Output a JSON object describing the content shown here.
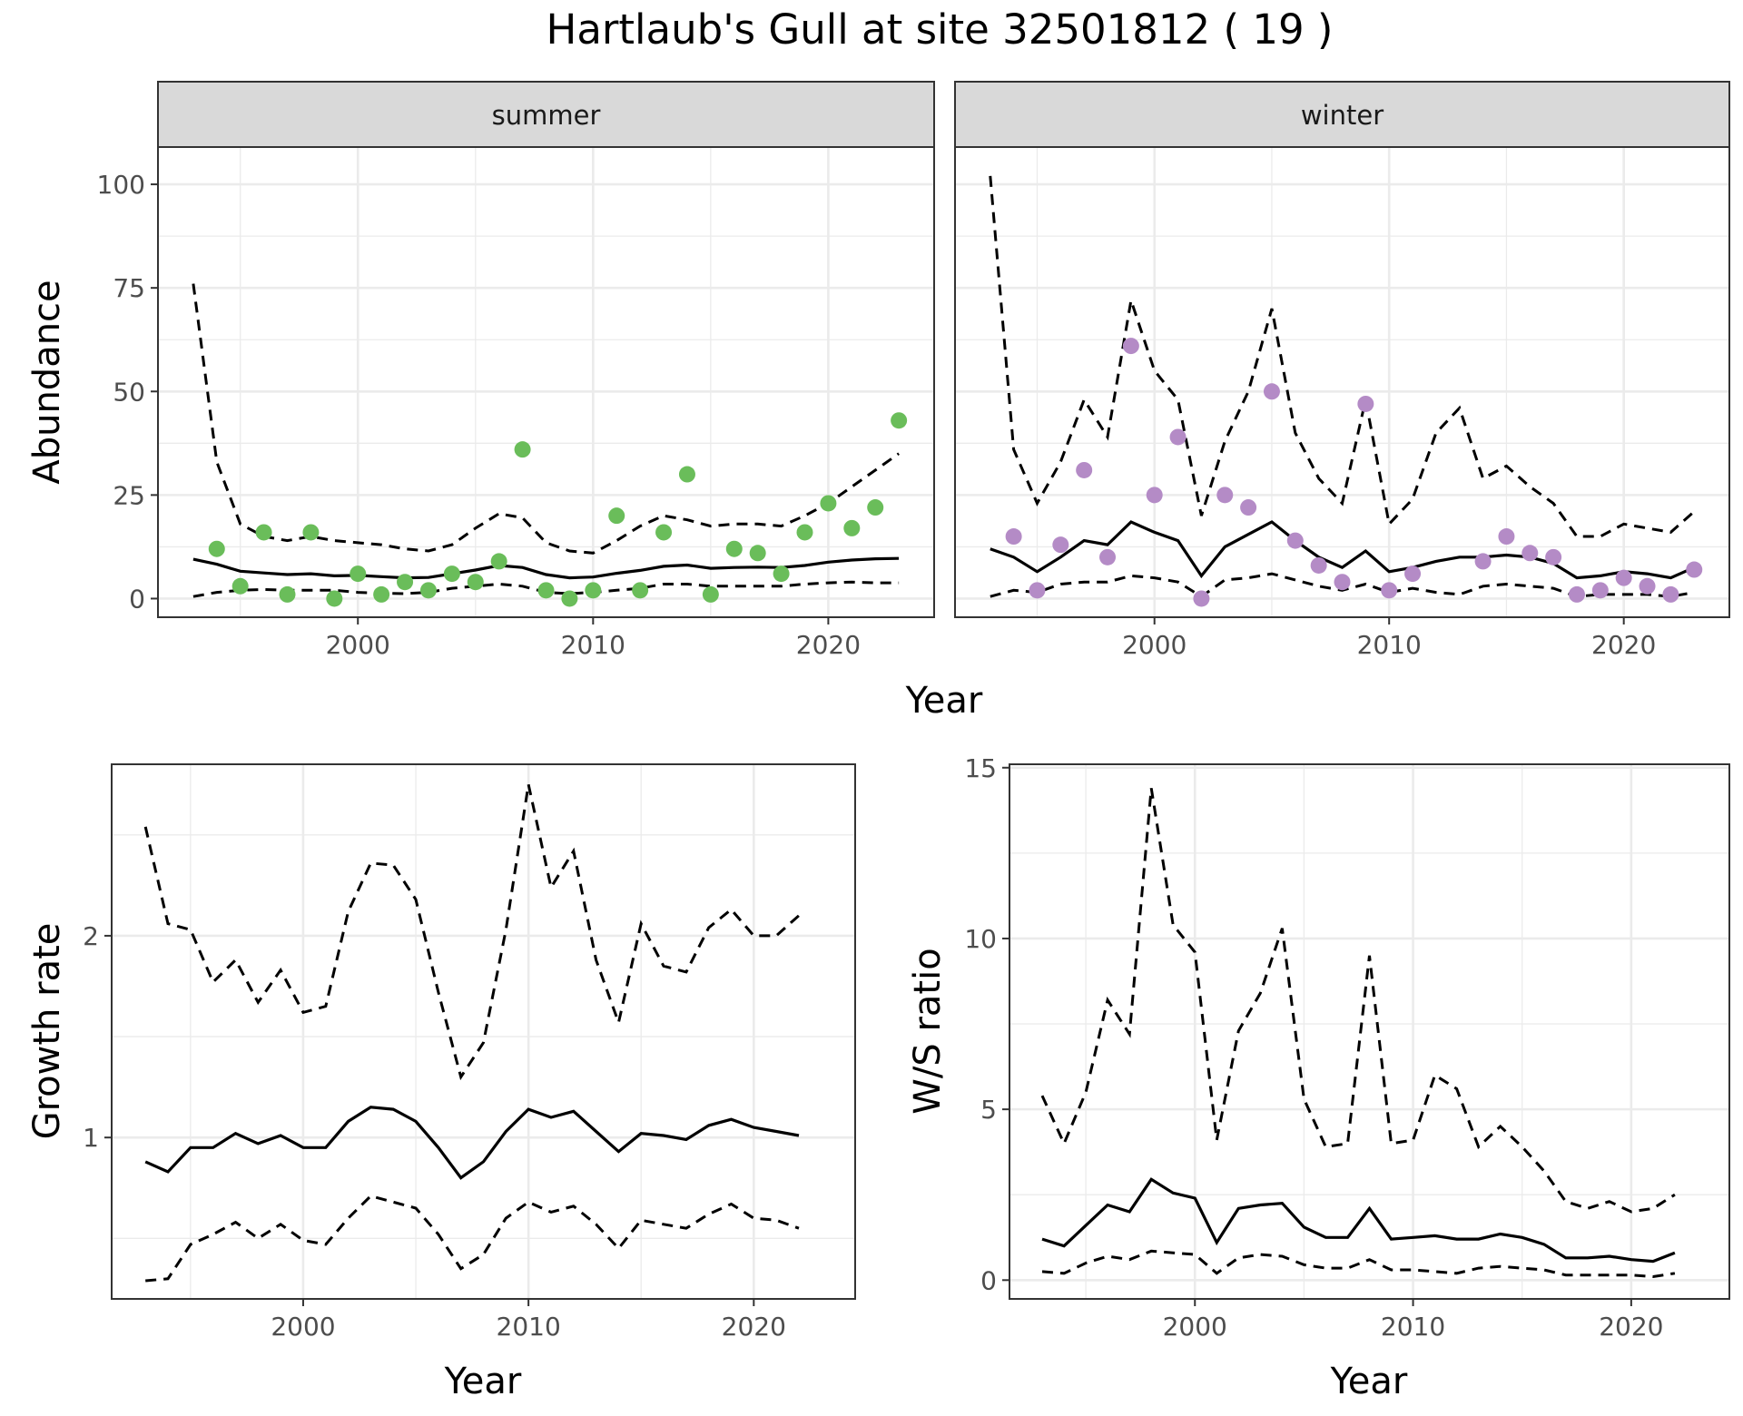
{
  "title": "Hartlaub's Gull at site 32501812 ( 19 )",
  "colors": {
    "summer_points": "#6abd5a",
    "winter_points": "#b48bc6",
    "line": "#000000",
    "grid": "#ebebeb",
    "strip_bg": "#d9d9d9"
  },
  "chart_data": [
    {
      "type": "scatter",
      "facet": "summer",
      "strip_label": "summer",
      "xlabel": "Year",
      "ylabel": "Abundance",
      "xlim": [
        1991.5,
        2024.5
      ],
      "ylim": [
        -4.5,
        109
      ],
      "xticks": [
        2000,
        2010,
        2020
      ],
      "yticks": [
        0,
        25,
        50,
        75,
        100
      ],
      "grid": true,
      "points": {
        "x": [
          1994,
          1995,
          1996,
          1997,
          1998,
          1999,
          2000,
          2001,
          2002,
          2003,
          2004,
          2005,
          2006,
          2007,
          2008,
          2009,
          2010,
          2011,
          2012,
          2013,
          2014,
          2015,
          2016,
          2017,
          2018,
          2019,
          2020,
          2021,
          2022,
          2023
        ],
        "y": [
          12,
          3,
          16,
          1,
          16,
          0,
          6,
          1,
          4,
          2,
          6,
          4,
          9,
          36,
          2,
          0,
          2,
          20,
          2,
          16,
          30,
          1,
          12,
          11,
          6,
          16,
          23,
          17,
          22,
          43
        ]
      },
      "fit": {
        "x": [
          1993,
          1994,
          1995,
          1996,
          1997,
          1998,
          1999,
          2000,
          2001,
          2002,
          2003,
          2004,
          2005,
          2006,
          2007,
          2008,
          2009,
          2010,
          2011,
          2012,
          2013,
          2014,
          2015,
          2016,
          2017,
          2018,
          2019,
          2020,
          2021,
          2022,
          2023
        ],
        "y": [
          9.5,
          8.3,
          6.6,
          6.2,
          5.8,
          6.0,
          5.5,
          5.6,
          5.3,
          5.0,
          5.1,
          6.0,
          6.9,
          8.0,
          7.5,
          5.8,
          5.0,
          5.2,
          6.1,
          6.8,
          7.8,
          8.1,
          7.3,
          7.5,
          7.6,
          7.5,
          8.0,
          8.8,
          9.3,
          9.6,
          9.7
        ]
      },
      "upper": {
        "x": [
          1993,
          1994,
          1995,
          1996,
          1997,
          1998,
          1999,
          2000,
          2001,
          2002,
          2003,
          2004,
          2005,
          2006,
          2007,
          2008,
          2009,
          2010,
          2011,
          2012,
          2013,
          2014,
          2015,
          2016,
          2017,
          2018,
          2019,
          2020,
          2021,
          2022,
          2023
        ],
        "y": [
          76,
          33,
          18,
          15,
          14,
          15,
          14,
          13.5,
          13,
          12,
          11.5,
          13,
          17,
          20.5,
          19.5,
          13.5,
          11.5,
          11,
          14,
          17.5,
          20,
          19,
          17.5,
          18,
          18,
          17.5,
          20,
          23,
          27,
          31,
          35
        ]
      },
      "lower": {
        "x": [
          1993,
          1994,
          1995,
          1996,
          1997,
          1998,
          1999,
          2000,
          2001,
          2002,
          2003,
          2004,
          2005,
          2006,
          2007,
          2008,
          2009,
          2010,
          2011,
          2012,
          2013,
          2014,
          2015,
          2016,
          2017,
          2018,
          2019,
          2020,
          2021,
          2022,
          2023
        ],
        "y": [
          0.5,
          1.5,
          2,
          2.2,
          2,
          2,
          2,
          1.5,
          1.3,
          1.2,
          1.5,
          2.5,
          3,
          3.5,
          3,
          1.5,
          1.2,
          1.5,
          2,
          2.5,
          3.5,
          3.5,
          3,
          3,
          3,
          3,
          3.5,
          3.8,
          4,
          3.8,
          3.8
        ]
      }
    },
    {
      "type": "scatter",
      "facet": "winter",
      "strip_label": "winter",
      "xlabel": "Year",
      "ylabel": "Abundance",
      "xlim": [
        1991.5,
        2024.5
      ],
      "ylim": [
        -4.5,
        109
      ],
      "xticks": [
        2000,
        2010,
        2020
      ],
      "yticks": [
        0,
        25,
        50,
        75,
        100
      ],
      "grid": true,
      "points": {
        "x": [
          1994,
          1995,
          1996,
          1997,
          1998,
          1999,
          2000,
          2001,
          2002,
          2003,
          2004,
          2005,
          2006,
          2007,
          2008,
          2009,
          2010,
          2011,
          2014,
          2015,
          2016,
          2017,
          2018,
          2019,
          2020,
          2021,
          2022,
          2023
        ],
        "y": [
          15,
          2,
          13,
          31,
          10,
          61,
          25,
          39,
          0,
          25,
          22,
          50,
          14,
          8,
          4,
          47,
          2,
          6,
          9,
          15,
          11,
          10,
          1,
          2,
          5,
          3,
          1,
          7
        ]
      },
      "fit": {
        "x": [
          1993,
          1994,
          1995,
          1996,
          1997,
          1998,
          1999,
          2000,
          2001,
          2002,
          2003,
          2004,
          2005,
          2006,
          2007,
          2008,
          2009,
          2010,
          2011,
          2012,
          2013,
          2014,
          2015,
          2016,
          2017,
          2018,
          2019,
          2020,
          2021,
          2022,
          2023
        ],
        "y": [
          12,
          10,
          6.5,
          10,
          14,
          13,
          18.5,
          16,
          14,
          5.5,
          12.5,
          15.5,
          18.5,
          14,
          10,
          7.5,
          11.5,
          6.5,
          7.5,
          9,
          10,
          10,
          10.5,
          10,
          8.5,
          5,
          5.5,
          6.5,
          6,
          5,
          7.5
        ]
      },
      "upper": {
        "x": [
          1993,
          1994,
          1995,
          1996,
          1997,
          1998,
          1999,
          2000,
          2001,
          2002,
          2003,
          2004,
          2005,
          2006,
          2007,
          2008,
          2009,
          2010,
          2011,
          2012,
          2013,
          2014,
          2015,
          2016,
          2017,
          2018,
          2019,
          2020,
          2021,
          2022,
          2023
        ],
        "y": [
          102,
          36,
          23,
          33,
          48,
          39,
          72,
          55,
          48,
          20,
          38,
          50,
          70,
          40,
          29,
          23,
          48,
          18,
          24,
          40,
          46,
          29,
          32,
          27,
          23,
          15,
          15,
          18,
          17,
          16,
          21
        ]
      },
      "lower": {
        "x": [
          1993,
          1994,
          1995,
          1996,
          1997,
          1998,
          1999,
          2000,
          2001,
          2002,
          2003,
          2004,
          2005,
          2006,
          2007,
          2008,
          2009,
          2010,
          2011,
          2012,
          2013,
          2014,
          2015,
          2016,
          2017,
          2018,
          2019,
          2020,
          2021,
          2022,
          2023
        ],
        "y": [
          0.5,
          2,
          1.5,
          3.5,
          4,
          4,
          5.5,
          5,
          4,
          0.5,
          4.5,
          5,
          6,
          4.5,
          3,
          2,
          3.5,
          1.5,
          2.5,
          1.5,
          1,
          3,
          3.5,
          3,
          2.5,
          0.5,
          1,
          1,
          1,
          0.5,
          1.5
        ]
      }
    },
    {
      "type": "line",
      "xlabel": "Year",
      "ylabel": "Growth rate",
      "xlim": [
        1991.5,
        2024.5
      ],
      "ylim": [
        0.2,
        2.85
      ],
      "xticks": [
        2000,
        2010,
        2020
      ],
      "yticks": [
        1,
        2
      ],
      "grid": true,
      "fit": {
        "x": [
          1993,
          1994,
          1995,
          1996,
          1997,
          1998,
          1999,
          2000,
          2001,
          2002,
          2003,
          2004,
          2005,
          2006,
          2007,
          2008,
          2009,
          2010,
          2011,
          2012,
          2013,
          2014,
          2015,
          2016,
          2017,
          2018,
          2019,
          2020,
          2021,
          2022
        ],
        "y": [
          0.88,
          0.83,
          0.95,
          0.95,
          1.02,
          0.97,
          1.01,
          0.95,
          0.95,
          1.08,
          1.15,
          1.14,
          1.08,
          0.95,
          0.8,
          0.88,
          1.03,
          1.14,
          1.1,
          1.13,
          1.03,
          0.93,
          1.02,
          1.01,
          0.99,
          1.06,
          1.09,
          1.05,
          1.03,
          1.01
        ]
      },
      "upper": {
        "x": [
          1993,
          1994,
          1995,
          1996,
          1997,
          1998,
          1999,
          2000,
          2001,
          2002,
          2003,
          2004,
          2005,
          2006,
          2007,
          2008,
          2009,
          2010,
          2011,
          2012,
          2013,
          2014,
          2015,
          2016,
          2017,
          2018,
          2019,
          2020,
          2021,
          2022
        ],
        "y": [
          2.54,
          2.06,
          2.03,
          1.77,
          1.88,
          1.67,
          1.83,
          1.62,
          1.65,
          2.12,
          2.36,
          2.35,
          2.18,
          1.72,
          1.3,
          1.47,
          2.03,
          2.75,
          2.24,
          2.42,
          1.88,
          1.57,
          2.06,
          1.85,
          1.82,
          2.04,
          2.13,
          2.0,
          2.0,
          2.1
        ]
      },
      "lower": {
        "x": [
          1993,
          1994,
          1995,
          1996,
          1997,
          1998,
          1999,
          2000,
          2001,
          2002,
          2003,
          2004,
          2005,
          2006,
          2007,
          2008,
          2009,
          2010,
          2011,
          2012,
          2013,
          2014,
          2015,
          2016,
          2017,
          2018,
          2019,
          2020,
          2021,
          2022
        ],
        "y": [
          0.29,
          0.3,
          0.47,
          0.52,
          0.58,
          0.5,
          0.57,
          0.49,
          0.47,
          0.6,
          0.71,
          0.68,
          0.65,
          0.52,
          0.35,
          0.42,
          0.6,
          0.68,
          0.63,
          0.66,
          0.57,
          0.45,
          0.59,
          0.57,
          0.55,
          0.62,
          0.67,
          0.6,
          0.59,
          0.55
        ]
      }
    },
    {
      "type": "line",
      "xlabel": "Year",
      "ylabel": "W/S ratio",
      "xlim": [
        1991.5,
        2024.5
      ],
      "ylim": [
        -0.55,
        15.1
      ],
      "xticks": [
        2000,
        2010,
        2020
      ],
      "yticks": [
        0,
        5,
        10,
        15
      ],
      "grid": true,
      "fit": {
        "x": [
          1993,
          1994,
          1995,
          1996,
          1997,
          1998,
          1999,
          2000,
          2001,
          2002,
          2003,
          2004,
          2005,
          2006,
          2007,
          2008,
          2009,
          2010,
          2011,
          2012,
          2013,
          2014,
          2015,
          2016,
          2017,
          2018,
          2019,
          2020,
          2021,
          2022
        ],
        "y": [
          1.2,
          1.0,
          1.6,
          2.2,
          2.0,
          2.95,
          2.55,
          2.4,
          1.1,
          2.1,
          2.2,
          2.25,
          1.55,
          1.25,
          1.25,
          2.1,
          1.2,
          1.25,
          1.3,
          1.2,
          1.2,
          1.35,
          1.25,
          1.05,
          0.65,
          0.65,
          0.7,
          0.6,
          0.55,
          0.8
        ]
      },
      "upper": {
        "x": [
          1993,
          1994,
          1995,
          1996,
          1997,
          1998,
          1999,
          2000,
          2001,
          2002,
          2003,
          2004,
          2005,
          2006,
          2007,
          2008,
          2009,
          2010,
          2011,
          2012,
          2013,
          2014,
          2015,
          2016,
          2017,
          2018,
          2019,
          2020,
          2021,
          2022
        ],
        "y": [
          5.4,
          4.0,
          5.5,
          8.2,
          7.2,
          14.4,
          10.4,
          9.6,
          4.1,
          7.3,
          8.4,
          10.3,
          5.3,
          3.9,
          4.0,
          9.5,
          4.0,
          4.1,
          6.0,
          5.6,
          3.9,
          4.5,
          3.9,
          3.2,
          2.3,
          2.1,
          2.3,
          2.0,
          2.1,
          2.5
        ]
      },
      "lower": {
        "x": [
          1993,
          1994,
          1995,
          1996,
          1997,
          1998,
          1999,
          2000,
          2001,
          2002,
          2003,
          2004,
          2005,
          2006,
          2007,
          2008,
          2009,
          2010,
          2011,
          2012,
          2013,
          2014,
          2015,
          2016,
          2017,
          2018,
          2019,
          2020,
          2021,
          2022
        ],
        "y": [
          0.25,
          0.2,
          0.5,
          0.7,
          0.6,
          0.85,
          0.8,
          0.75,
          0.2,
          0.65,
          0.75,
          0.7,
          0.45,
          0.35,
          0.35,
          0.6,
          0.3,
          0.3,
          0.25,
          0.2,
          0.35,
          0.4,
          0.35,
          0.3,
          0.15,
          0.15,
          0.15,
          0.15,
          0.1,
          0.2
        ]
      }
    }
  ],
  "shared_xlabel_top": "Year"
}
